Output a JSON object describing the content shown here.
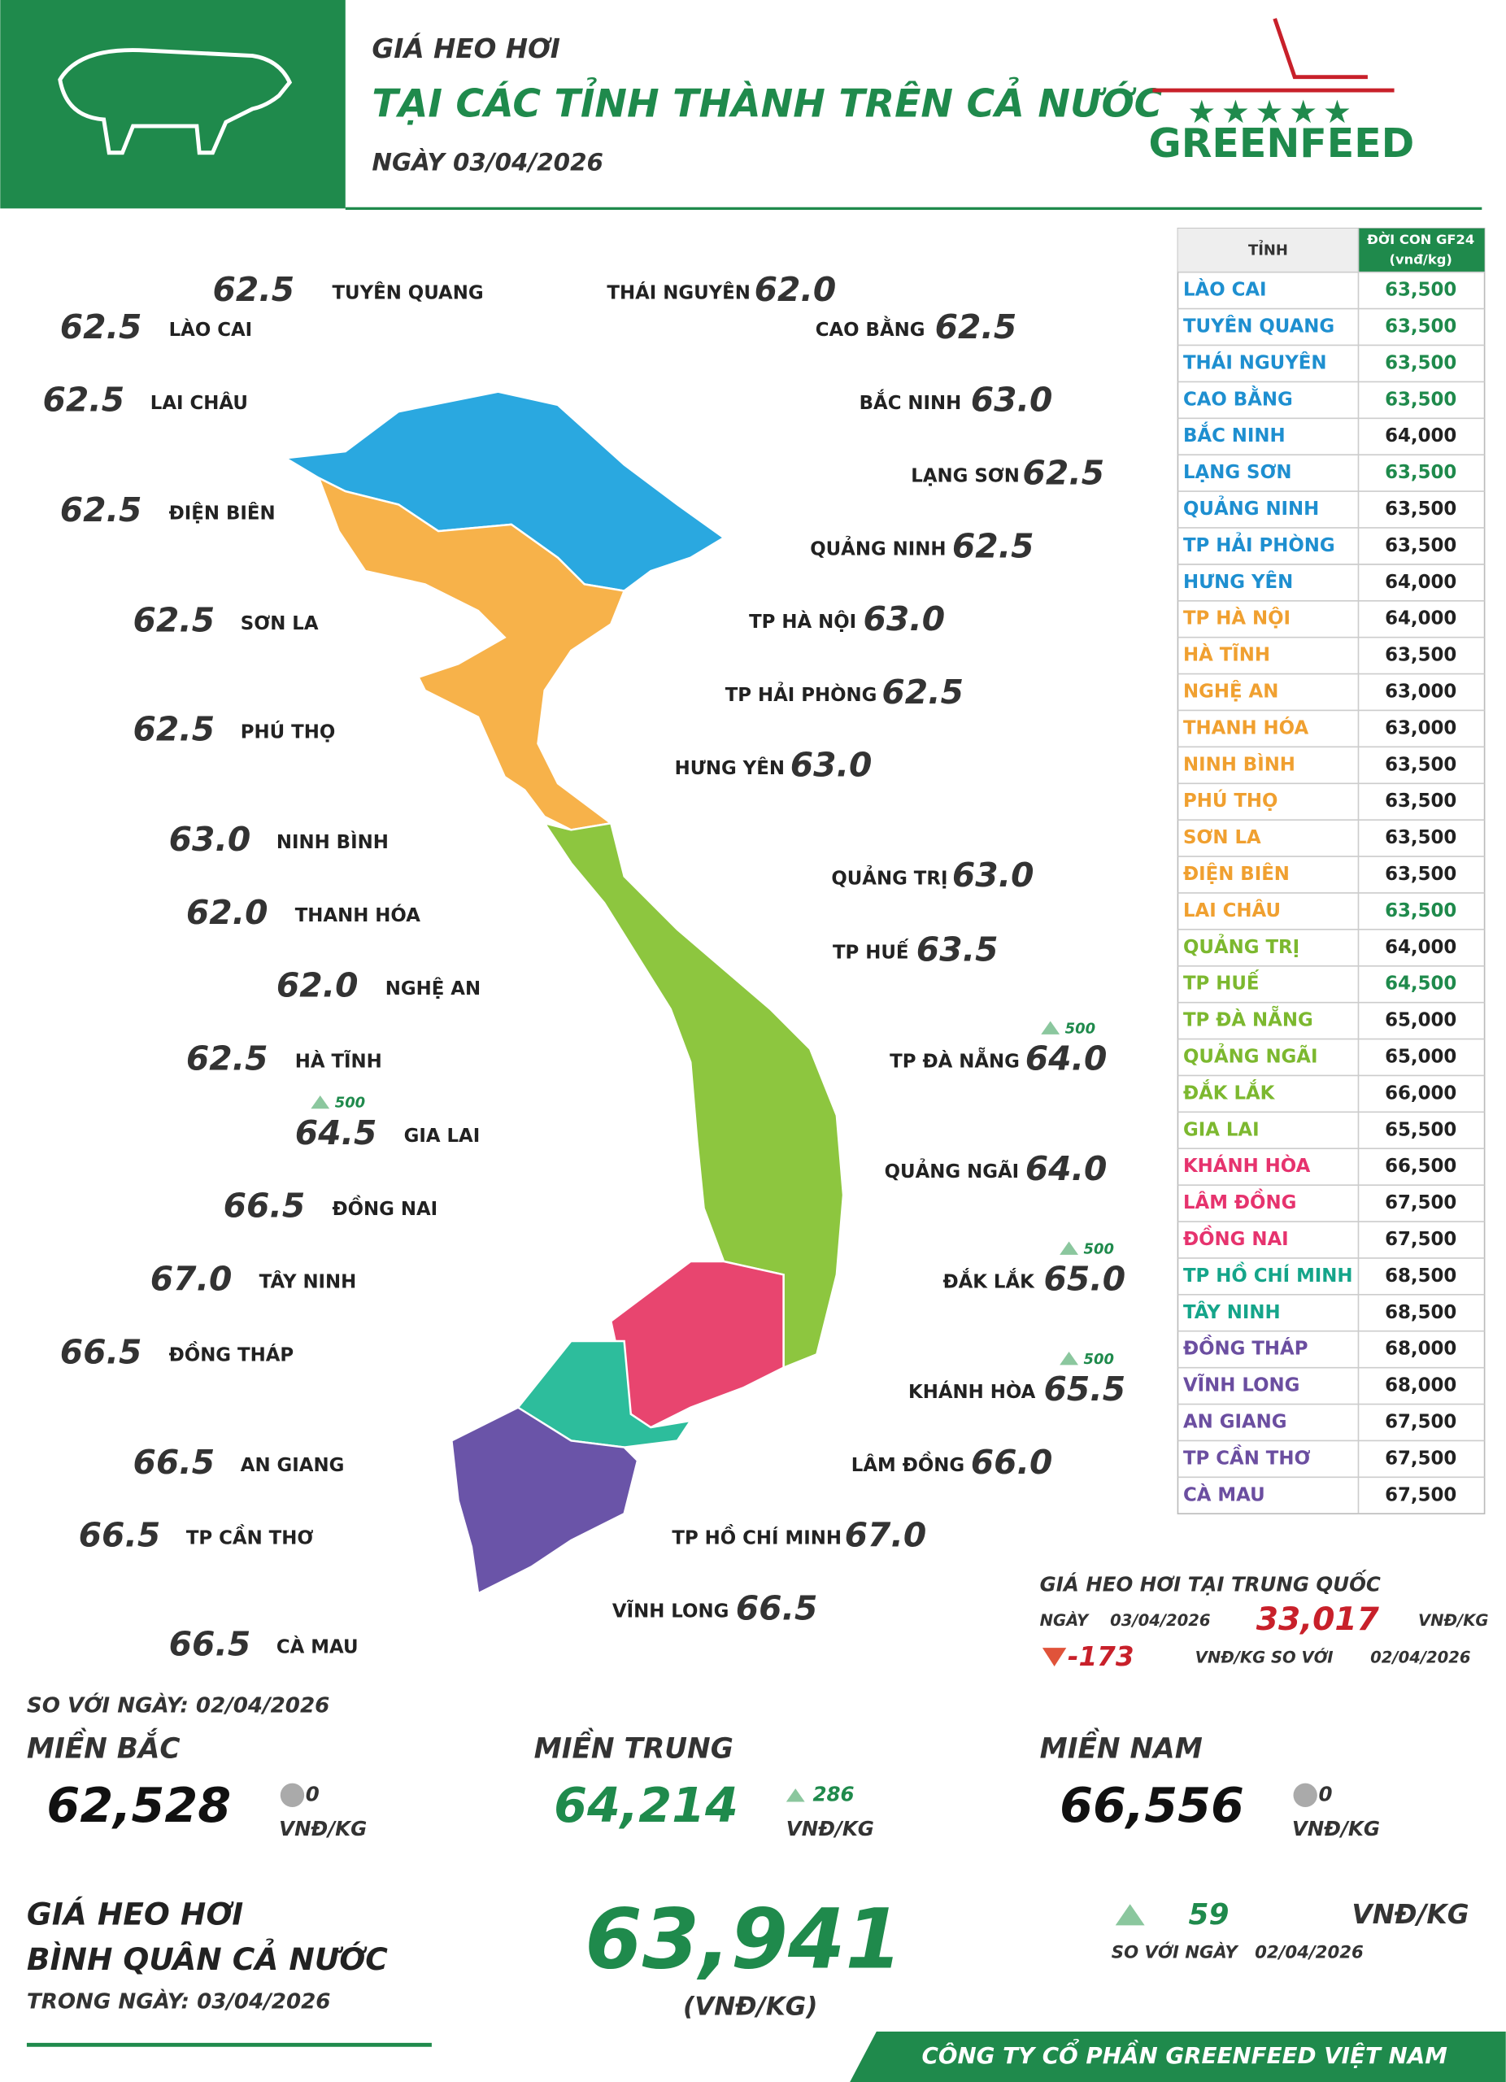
{
  "header": {
    "kicker": "GIÁ HEO HƠI",
    "title": "TẠI CÁC TỈNH THÀNH TRÊN CẢ NƯỚC",
    "date": "NGÀY  03/04/2026",
    "logo": "GREENFEED"
  },
  "map_labels": [
    {
      "name": "TUYÊN QUANG",
      "price": "62.5"
    },
    {
      "name": "LÀO CAI",
      "price": "62.5"
    },
    {
      "name": "LAI CHÂU",
      "price": "62.5"
    },
    {
      "name": "ĐIỆN BIÊN",
      "price": "62.5"
    },
    {
      "name": "SƠN LA",
      "price": "62.5"
    },
    {
      "name": "PHÚ THỌ",
      "price": "62.5"
    },
    {
      "name": "NINH BÌNH",
      "price": "63.0"
    },
    {
      "name": "THANH HÓA",
      "price": "62.0"
    },
    {
      "name": "NGHỆ AN",
      "price": "62.0"
    },
    {
      "name": "HÀ TĨNH",
      "price": "62.5"
    },
    {
      "name": "GIA LAI",
      "price": "64.5",
      "change": "500"
    },
    {
      "name": "ĐỒNG NAI",
      "price": "66.5"
    },
    {
      "name": "TÂY NINH",
      "price": "67.0"
    },
    {
      "name": "ĐỒNG THÁP",
      "price": "66.5"
    },
    {
      "name": "AN GIANG",
      "price": "66.5"
    },
    {
      "name": "TP CẦN THƠ",
      "price": "66.5"
    },
    {
      "name": "CÀ MAU",
      "price": "66.5"
    },
    {
      "name": "THÁI NGUYÊN",
      "price": "62.0"
    },
    {
      "name": "CAO BẰNG",
      "price": "62.5"
    },
    {
      "name": "BẮC NINH",
      "price": "63.0"
    },
    {
      "name": "LẠNG SƠN",
      "price": "62.5"
    },
    {
      "name": "QUẢNG NINH",
      "price": "62.5"
    },
    {
      "name": "TP HÀ NỘI",
      "price": "63.0"
    },
    {
      "name": "TP HẢI PHÒNG",
      "price": "62.5"
    },
    {
      "name": "HƯNG YÊN",
      "price": "63.0"
    },
    {
      "name": "QUẢNG TRỊ",
      "price": "63.0"
    },
    {
      "name": "TP HUẾ",
      "price": "63.5"
    },
    {
      "name": "TP ĐÀ NẴNG",
      "price": "64.0",
      "change": "500"
    },
    {
      "name": "QUẢNG NGÃI",
      "price": "64.0"
    },
    {
      "name": "ĐẮK LẮK",
      "price": "65.0",
      "change": "500"
    },
    {
      "name": "KHÁNH HÒA",
      "price": "65.5",
      "change": "500"
    },
    {
      "name": "LÂM ĐỒNG",
      "price": "66.0"
    },
    {
      "name": "TP HỒ CHÍ MINH",
      "price": "67.0"
    },
    {
      "name": "VĨNH LONG",
      "price": "66.5"
    }
  ],
  "table": {
    "header": [
      "TỈNH",
      "ĐỜI CON GF24",
      "(vnđ/kg)"
    ],
    "rows": [
      {
        "name": "LÀO CAI",
        "price": "63,500",
        "color": "#1e8fd0",
        "price_color": "#1f8a4c"
      },
      {
        "name": "TUYÊN QUANG",
        "price": "63,500",
        "color": "#1e8fd0",
        "price_color": "#1f8a4c"
      },
      {
        "name": "THÁI NGUYÊN",
        "price": "63,500",
        "color": "#1e8fd0",
        "price_color": "#1f8a4c"
      },
      {
        "name": "CAO BẰNG",
        "price": "63,500",
        "color": "#1e8fd0",
        "price_color": "#1f8a4c"
      },
      {
        "name": "BẮC NINH",
        "price": "64,000",
        "color": "#1e8fd0",
        "price_color": "#222222"
      },
      {
        "name": "LẠNG SƠN",
        "price": "63,500",
        "color": "#1e8fd0",
        "price_color": "#1f8a4c"
      },
      {
        "name": "QUẢNG NINH",
        "price": "63,500",
        "color": "#1e8fd0",
        "price_color": "#222222"
      },
      {
        "name": "TP HẢI PHÒNG",
        "price": "63,500",
        "color": "#1e8fd0",
        "price_color": "#222222"
      },
      {
        "name": "HƯNG YÊN",
        "price": "64,000",
        "color": "#1e8fd0",
        "price_color": "#222222"
      },
      {
        "name": "TP HÀ NỘI",
        "price": "64,000",
        "color": "#f0a030",
        "price_color": "#222222"
      },
      {
        "name": "HÀ TĨNH",
        "price": "63,500",
        "color": "#f0a030",
        "price_color": "#222222"
      },
      {
        "name": "NGHỆ AN",
        "price": "63,000",
        "color": "#f0a030",
        "price_color": "#222222"
      },
      {
        "name": "THANH HÓA",
        "price": "63,000",
        "color": "#f0a030",
        "price_color": "#222222"
      },
      {
        "name": "NINH BÌNH",
        "price": "63,500",
        "color": "#f0a030",
        "price_color": "#222222"
      },
      {
        "name": "PHÚ THỌ",
        "price": "63,500",
        "color": "#f0a030",
        "price_color": "#222222"
      },
      {
        "name": "SƠN LA",
        "price": "63,500",
        "color": "#f0a030",
        "price_color": "#222222"
      },
      {
        "name": "ĐIỆN BIÊN",
        "price": "63,500",
        "color": "#f0a030",
        "price_color": "#222222"
      },
      {
        "name": "LAI CHÂU",
        "price": "63,500",
        "color": "#f0a030",
        "price_color": "#1f8a4c"
      },
      {
        "name": "QUẢNG TRỊ",
        "price": "64,000",
        "color": "#7cb82f",
        "price_color": "#222222"
      },
      {
        "name": "TP HUẾ",
        "price": "64,500",
        "color": "#7cb82f",
        "price_color": "#1f8a4c"
      },
      {
        "name": "TP ĐÀ NẴNG",
        "price": "65,000",
        "color": "#7cb82f",
        "price_color": "#222222"
      },
      {
        "name": "QUẢNG NGÃI",
        "price": "65,000",
        "color": "#7cb82f",
        "price_color": "#222222"
      },
      {
        "name": "ĐẮK LẮK",
        "price": "66,000",
        "color": "#7cb82f",
        "price_color": "#222222"
      },
      {
        "name": "GIA LAI",
        "price": "65,500",
        "color": "#7cb82f",
        "price_color": "#222222"
      },
      {
        "name": "KHÁNH HÒA",
        "price": "66,500",
        "color": "#e6336e",
        "price_color": "#222222"
      },
      {
        "name": "LÂM ĐỒNG",
        "price": "67,500",
        "color": "#e6336e",
        "price_color": "#222222"
      },
      {
        "name": "ĐỒNG NAI",
        "price": "67,500",
        "color": "#e6336e",
        "price_color": "#222222"
      },
      {
        "name": "TP HỒ CHÍ MINH",
        "price": "68,500",
        "color": "#15a58a",
        "price_color": "#222222"
      },
      {
        "name": "TÂY NINH",
        "price": "68,500",
        "color": "#15a58a",
        "price_color": "#222222"
      },
      {
        "name": "ĐỒNG THÁP",
        "price": "68,000",
        "color": "#6b4ea0",
        "price_color": "#222222"
      },
      {
        "name": "VĨNH LONG",
        "price": "68,000",
        "color": "#6b4ea0",
        "price_color": "#222222"
      },
      {
        "name": "AN GIANG",
        "price": "67,500",
        "color": "#6b4ea0",
        "price_color": "#222222"
      },
      {
        "name": "TP CẦN THƠ",
        "price": "67,500",
        "color": "#6b4ea0",
        "price_color": "#222222"
      },
      {
        "name": "CÀ MAU",
        "price": "67,500",
        "color": "#6b4ea0",
        "price_color": "#222222"
      }
    ]
  },
  "china": {
    "title": "GIÁ HEO HƠI TẠI TRUNG QUỐC",
    "date_label": "NGÀY",
    "date": "03/04/2026",
    "price": "33,017",
    "unit": "VNĐ/KG",
    "change": "-173",
    "change_unit": "VNĐ/KG SO VỚI",
    "compare_date": "02/04/2026"
  },
  "regions": {
    "compare": "SO VỚI NGÀY:  02/04/2026",
    "items": [
      {
        "name": "MIỀN BẮC",
        "price": "62,528",
        "change": "0",
        "unit": "VNĐ/KG"
      },
      {
        "name": "MIỀN TRUNG",
        "price": "64,214",
        "change": "286",
        "unit": "VNĐ/KG"
      },
      {
        "name": "MIỀN NAM",
        "price": "66,556",
        "change": "0",
        "unit": "VNĐ/KG"
      }
    ]
  },
  "average": {
    "line1": "GIÁ HEO HƠI",
    "line2": "BÌNH QUÂN CẢ NƯỚC",
    "line3": "TRONG NGÀY:  03/04/2026",
    "price": "63,941",
    "unit": "(VNĐ/KG)",
    "change": "59",
    "change_unit": "VNĐ/KG",
    "compare": "SO VỚI NGÀY",
    "compare_date": "02/04/2026"
  },
  "footer": "CÔNG TY CỔ PHẦN GREENFEED VIỆT NAM"
}
